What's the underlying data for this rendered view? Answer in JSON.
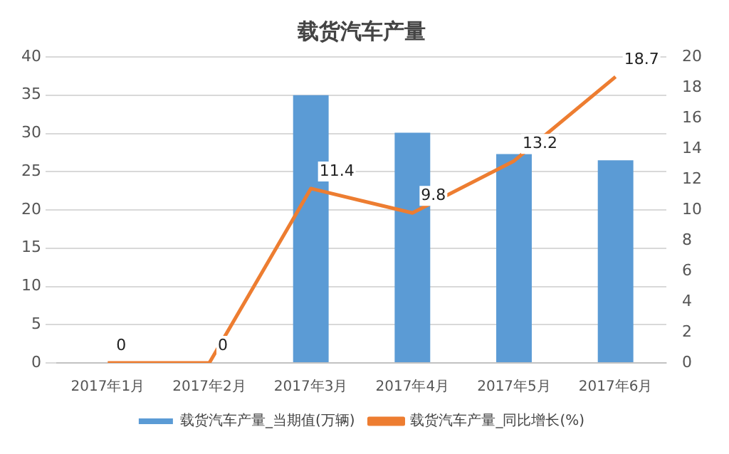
{
  "chart_data": {
    "type": "bar",
    "title": "载货汽车产量",
    "categories": [
      "2017年1月",
      "2017年2月",
      "2017年3月",
      "2017年4月",
      "2017年5月",
      "2017年6月"
    ],
    "series": [
      {
        "name": "载货汽车产量_当期值(万辆)",
        "color": "#5b9bd5",
        "values": [
          null,
          null,
          35.0,
          30.1,
          27.3,
          26.5
        ]
      },
      {
        "name": "载货汽车产量_同比增长(%)",
        "type": "line",
        "axis": "y2",
        "color": "#ed7d31",
        "values": [
          0,
          0,
          11.4,
          9.8,
          13.2,
          18.7
        ],
        "value_labels": [
          "0",
          "0",
          "11.4",
          "9.8",
          "13.2",
          "18.7"
        ]
      }
    ],
    "ylim": [
      0,
      40
    ],
    "yticks": [
      0,
      5,
      10,
      15,
      20,
      25,
      30,
      35,
      40
    ],
    "y2lim": [
      0,
      20
    ],
    "y2ticks": [
      0,
      2,
      4,
      6,
      8,
      10,
      12,
      14,
      16,
      18,
      20
    ],
    "grid": "y",
    "legend": "bottom",
    "marker": "none"
  }
}
